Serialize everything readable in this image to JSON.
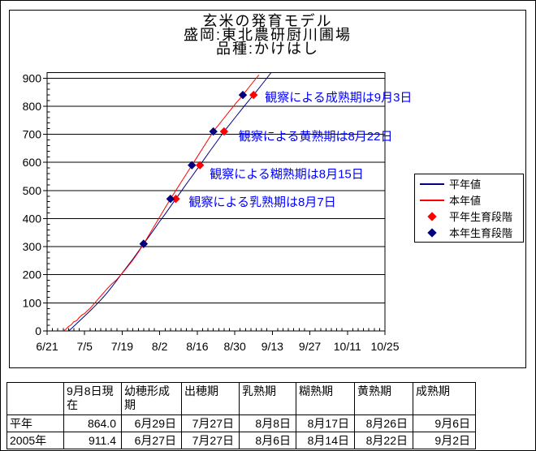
{
  "chart": {
    "title_lines": [
      "玄米の発育モデル",
      "盛岡:東北農研厨川圃場",
      "品種:かけはし"
    ]
  },
  "chart_data": {
    "type": "line",
    "title": "玄米の発育モデル",
    "location_line": "盛岡:東北農研厨川圃場",
    "variety_line": "品種:かけはし",
    "xlabel": "",
    "ylabel": "",
    "x_tick_labels": [
      "6/21",
      "7/5",
      "7/19",
      "8/2",
      "8/16",
      "8/30",
      "9/13",
      "9/27",
      "10/11",
      "10/25"
    ],
    "x_minor_tick_interval_days": 2,
    "y_ticks": [
      0,
      100,
      200,
      300,
      400,
      500,
      600,
      700,
      800,
      900
    ],
    "y_minor_tick_interval": 20,
    "ylim": [
      0,
      920
    ],
    "grid": "horizontal-major",
    "legend_position": "right",
    "series": [
      {
        "name": "平年値",
        "color": "#000080",
        "points": [
          [
            "6/29",
            0
          ],
          [
            "6/30",
            8
          ],
          [
            "7/1",
            17
          ],
          [
            "7/2",
            26
          ],
          [
            "7/3",
            35
          ],
          [
            "7/4",
            44
          ],
          [
            "7/5",
            53
          ],
          [
            "7/6",
            62
          ],
          [
            "7/7",
            71
          ],
          [
            "7/9",
            90
          ],
          [
            "7/11",
            110
          ],
          [
            "7/13",
            131
          ],
          [
            "7/15",
            155
          ],
          [
            "7/17",
            180
          ],
          [
            "7/19",
            206
          ],
          [
            "7/21",
            231
          ],
          [
            "7/23",
            256
          ],
          [
            "7/25",
            283
          ],
          [
            "7/27",
            310
          ],
          [
            "7/29",
            336
          ],
          [
            "7/31",
            363
          ],
          [
            "8/2",
            390
          ],
          [
            "8/4",
            416
          ],
          [
            "8/6",
            443
          ],
          [
            "8/8",
            470
          ],
          [
            "8/10",
            497
          ],
          [
            "8/12",
            524
          ],
          [
            "8/14",
            550
          ],
          [
            "8/16",
            577
          ],
          [
            "8/17",
            590
          ],
          [
            "8/19",
            617
          ],
          [
            "8/21",
            644
          ],
          [
            "8/23",
            670
          ],
          [
            "8/26",
            710
          ],
          [
            "8/28",
            734
          ],
          [
            "8/30",
            758
          ],
          [
            "9/1",
            782
          ],
          [
            "9/3",
            806
          ],
          [
            "9/6",
            840
          ],
          [
            "9/8",
            864
          ],
          [
            "9/10",
            888
          ],
          [
            "9/13",
            925
          ]
        ]
      },
      {
        "name": "本年値",
        "color": "#ff0000",
        "points": [
          [
            "6/27",
            0
          ],
          [
            "6/28",
            6
          ],
          [
            "6/29",
            16
          ],
          [
            "6/30",
            22
          ],
          [
            "7/1",
            33
          ],
          [
            "7/2",
            36
          ],
          [
            "7/3",
            48
          ],
          [
            "7/4",
            57
          ],
          [
            "7/5",
            62
          ],
          [
            "7/6",
            72
          ],
          [
            "7/7",
            80
          ],
          [
            "7/9",
            102
          ],
          [
            "7/11",
            124
          ],
          [
            "7/13",
            146
          ],
          [
            "7/15",
            166
          ],
          [
            "7/17",
            183
          ],
          [
            "7/19",
            205
          ],
          [
            "7/21",
            228
          ],
          [
            "7/23",
            253
          ],
          [
            "7/25",
            280
          ],
          [
            "7/27",
            310
          ],
          [
            "7/29",
            342
          ],
          [
            "7/31",
            374
          ],
          [
            "8/2",
            406
          ],
          [
            "8/4",
            438
          ],
          [
            "8/6",
            470
          ],
          [
            "8/8",
            500
          ],
          [
            "8/10",
            530
          ],
          [
            "8/12",
            560
          ],
          [
            "8/14",
            590
          ],
          [
            "8/16",
            620
          ],
          [
            "8/18",
            650
          ],
          [
            "8/20",
            680
          ],
          [
            "8/22",
            710
          ],
          [
            "8/24",
            734
          ],
          [
            "8/26",
            758
          ],
          [
            "8/28",
            782
          ],
          [
            "8/30",
            806
          ],
          [
            "9/1",
            828
          ],
          [
            "9/2",
            840
          ],
          [
            "9/4",
            864
          ],
          [
            "9/6",
            888
          ],
          [
            "9/8",
            911.4
          ]
        ]
      }
    ],
    "markers": [
      {
        "name": "平年生育段階",
        "color": "#ff0000",
        "shape": "diamond",
        "on_series": "平年値",
        "points": [
          {
            "stage": "出穂期",
            "date": "7/27",
            "value": 310
          },
          {
            "stage": "乳熟期",
            "date": "8/8",
            "value": 470
          },
          {
            "stage": "糊熟期",
            "date": "8/17",
            "value": 590
          },
          {
            "stage": "黄熟期",
            "date": "8/26",
            "value": 710
          },
          {
            "stage": "成熟期",
            "date": "9/6",
            "value": 840
          }
        ]
      },
      {
        "name": "本年生育段階",
        "color": "#000080",
        "shape": "diamond",
        "on_series": "本年値",
        "points": [
          {
            "stage": "出穂期",
            "date": "7/27",
            "value": 310
          },
          {
            "stage": "乳熟期",
            "date": "8/6",
            "value": 470
          },
          {
            "stage": "糊熟期",
            "date": "8/14",
            "value": 590
          },
          {
            "stage": "黄熟期",
            "date": "8/22",
            "value": 710
          },
          {
            "stage": "成熟期",
            "date": "9/2",
            "value": 840
          }
        ]
      }
    ],
    "annotations": [
      {
        "text": "観察による乳熟期は8月7日",
        "stage": "乳熟期",
        "observed_date": "8月7日",
        "anchor_date": "8/8",
        "value": 470
      },
      {
        "text": "観察による糊熟期は8月15日",
        "stage": "糊熟期",
        "observed_date": "8月15日",
        "anchor_date": "8/17",
        "value": 590
      },
      {
        "text": "観察による黄熟期は8月22日",
        "stage": "黄熟期",
        "observed_date": "8月22日",
        "anchor_date": "8/26",
        "value": 710
      },
      {
        "text": "観察による成熟期は9月3日",
        "stage": "成熟期",
        "observed_date": "9月3日",
        "anchor_date": "9/6",
        "value": 840
      }
    ]
  },
  "legend": {
    "items": [
      {
        "label": "平年値",
        "swatch": "line",
        "color": "#000080"
      },
      {
        "label": "本年値",
        "swatch": "line",
        "color": "#ff0000"
      },
      {
        "label": "平年生育段階",
        "swatch": "diamond",
        "color": "#ff0000"
      },
      {
        "label": "本年生育段階",
        "swatch": "diamond",
        "color": "#000080"
      }
    ]
  },
  "table": {
    "headers": [
      "",
      "9月8日現在",
      "幼穂形成期",
      "出穂期",
      "乳熟期",
      "糊熟期",
      "黄熟期",
      "成熟期"
    ],
    "rows": [
      {
        "label": "平年",
        "cells": [
          "864.0",
          "6月29日",
          "7月27日",
          "8月8日",
          "8月17日",
          "8月26日",
          "9月6日"
        ]
      },
      {
        "label": "2005年",
        "cells": [
          "911.4",
          "6月27日",
          "7月27日",
          "8月6日",
          "8月14日",
          "8月22日",
          "9月2日"
        ]
      }
    ]
  },
  "colors": {
    "average_line": "#000080",
    "current_line": "#ff0000",
    "annotation_text": "#0000ff",
    "axis": "#000000",
    "background": "#ffffff"
  }
}
